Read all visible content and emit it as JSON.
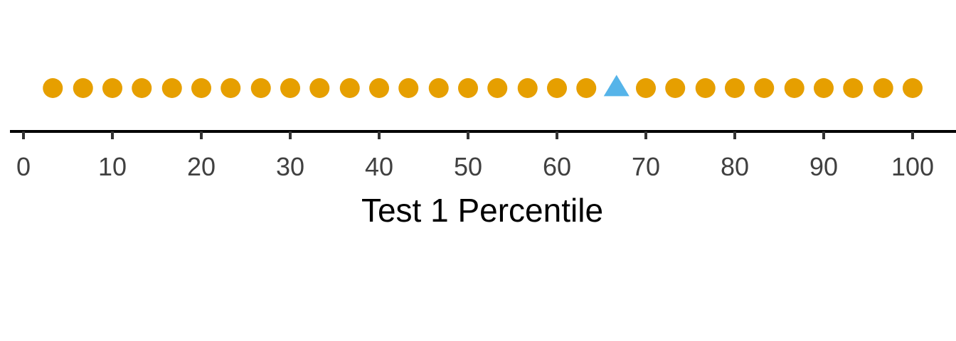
{
  "chart_data": {
    "type": "scatter",
    "title": "",
    "xlabel": "Test 1 Percentile",
    "ylabel": "",
    "xlim": [
      0,
      100
    ],
    "x_ticks": [
      0,
      10,
      20,
      30,
      40,
      50,
      60,
      70,
      80,
      90,
      100
    ],
    "x_tick_labels": [
      "0",
      "10",
      "20",
      "30",
      "40",
      "50",
      "60",
      "70",
      "80",
      "90",
      "100"
    ],
    "grid": false,
    "legend": "none",
    "series": [
      {
        "marker": "circle",
        "color": "#E69F00",
        "x": [
          3.3,
          6.7,
          10.0,
          13.3,
          16.7,
          20.0,
          23.3,
          26.7,
          30.0,
          33.3,
          36.7,
          40.0,
          43.3,
          46.7,
          50.0,
          53.3,
          56.7,
          60.0,
          63.3,
          70.0,
          73.3,
          76.7,
          80.0,
          83.3,
          86.7,
          90.0,
          93.3,
          96.7,
          100.0
        ]
      },
      {
        "marker": "triangle",
        "color": "#56B4E9",
        "x": [
          66.7
        ]
      }
    ]
  }
}
